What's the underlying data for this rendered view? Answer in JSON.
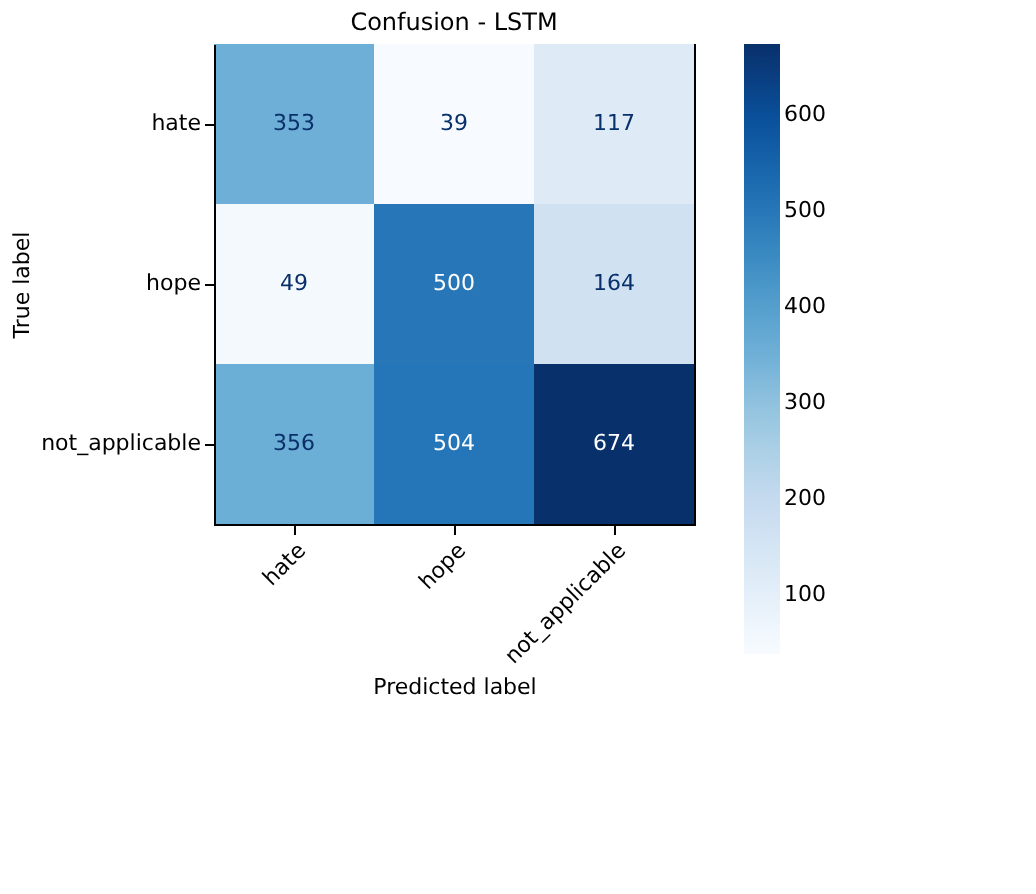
{
  "chart_data": {
    "type": "heatmap",
    "title": "Confusion - LSTM",
    "xlabel": "Predicted label",
    "ylabel": "True label",
    "categories": [
      "hate",
      "hope",
      "not_applicable"
    ],
    "y_categories": [
      "hate",
      "hope",
      "not_applicable"
    ],
    "cells": [
      [
        353,
        39,
        117
      ],
      [
        49,
        500,
        164
      ],
      [
        356,
        504,
        674
      ]
    ],
    "data_labels": true,
    "clim": [
      39,
      674
    ],
    "cticks": [
      100,
      200,
      300,
      400,
      500,
      600
    ],
    "grid": false
  }
}
